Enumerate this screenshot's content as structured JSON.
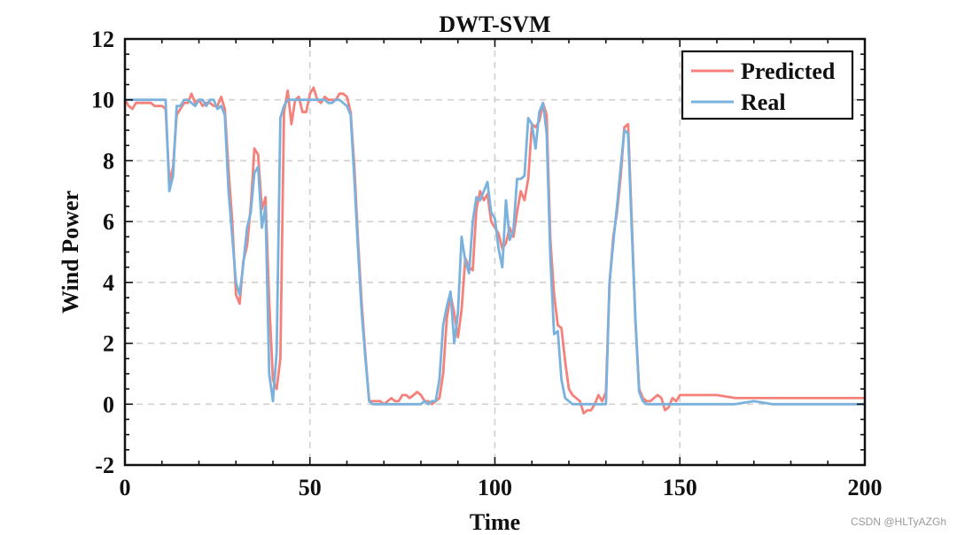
{
  "watermark": "CSDN @HLTyAZGh",
  "chart_data": {
    "type": "line",
    "title": "DWT-SVM",
    "xlabel": "Time",
    "ylabel": "Wind Power",
    "xlim": [
      0,
      200
    ],
    "ylim": [
      -2,
      12
    ],
    "xticks": [
      0,
      50,
      100,
      150,
      200
    ],
    "yticks": [
      -2,
      0,
      2,
      4,
      6,
      8,
      10,
      12
    ],
    "xtick_labels": [
      "0",
      "50",
      "100",
      "150",
      "200"
    ],
    "ytick_labels": [
      "-2",
      "0",
      "2",
      "4",
      "6",
      "8",
      "10",
      "12"
    ],
    "grid": true,
    "legend_position": "top-right",
    "series": [
      {
        "name": "Predicted",
        "color": "#f4827b",
        "x": [
          0,
          1,
          2,
          3,
          4,
          5,
          6,
          7,
          8,
          9,
          10,
          11,
          12,
          13,
          14,
          15,
          16,
          17,
          18,
          19,
          20,
          21,
          22,
          23,
          24,
          25,
          26,
          27,
          28,
          29,
          30,
          31,
          32,
          33,
          34,
          35,
          36,
          37,
          38,
          39,
          40,
          41,
          42,
          43,
          44,
          45,
          46,
          47,
          48,
          49,
          50,
          51,
          52,
          53,
          54,
          55,
          56,
          57,
          58,
          59,
          60,
          61,
          62,
          63,
          64,
          65,
          66,
          67,
          68,
          69,
          70,
          71,
          72,
          73,
          74,
          75,
          76,
          77,
          78,
          79,
          80,
          81,
          82,
          83,
          84,
          85,
          86,
          87,
          88,
          89,
          90,
          91,
          92,
          93,
          94,
          95,
          96,
          97,
          98,
          99,
          100,
          101,
          102,
          103,
          104,
          105,
          106,
          107,
          108,
          109,
          110,
          111,
          112,
          113,
          114,
          115,
          116,
          117,
          118,
          119,
          120,
          121,
          122,
          123,
          124,
          125,
          126,
          127,
          128,
          129,
          130,
          131,
          132,
          133,
          134,
          135,
          136,
          137,
          138,
          139,
          140,
          141,
          142,
          143,
          144,
          145,
          146,
          147,
          148,
          149,
          150,
          155,
          160,
          165,
          170,
          175,
          180,
          185,
          190,
          195,
          200
        ],
        "values": [
          10,
          9.8,
          9.7,
          9.9,
          9.9,
          9.9,
          9.9,
          9.9,
          9.8,
          9.8,
          9.8,
          9.7,
          7.3,
          7.8,
          9.5,
          9.7,
          9.9,
          9.9,
          10.2,
          9.9,
          10,
          9.8,
          9.9,
          9.9,
          9.8,
          9.8,
          10.1,
          9.7,
          7.7,
          6,
          3.6,
          3.3,
          4.7,
          5.2,
          6.5,
          8.4,
          8.2,
          6.4,
          6.8,
          3.4,
          0.8,
          0.5,
          1.5,
          9.6,
          10.3,
          9.2,
          10,
          10.1,
          9.6,
          9.6,
          10.2,
          10.4,
          10,
          9.9,
          10.1,
          10,
          10,
          10,
          10.2,
          10.2,
          10.1,
          9.6,
          7.8,
          5.4,
          3.3,
          1.6,
          0.1,
          0.1,
          0.1,
          0.1,
          0,
          0.1,
          0.2,
          0.1,
          0.1,
          0.3,
          0.3,
          0.2,
          0.3,
          0.4,
          0.3,
          0.1,
          0.1,
          0,
          0.1,
          0.2,
          1,
          2.8,
          3.6,
          3,
          2.2,
          3.1,
          4.8,
          4.5,
          4.4,
          6.4,
          7,
          6.7,
          6.9,
          6,
          5.8,
          5.6,
          5.1,
          5.3,
          5.8,
          5.5,
          6.3,
          7,
          6.7,
          7.4,
          9.2,
          9.1,
          9.3,
          9.9,
          9.5,
          5.4,
          3.6,
          2.6,
          2.5,
          1.4,
          0.5,
          0.3,
          0.2,
          0.1,
          -0.3,
          -0.2,
          -0.2,
          0,
          0.3,
          0.1,
          0.4,
          4,
          5.5,
          6.3,
          7.5,
          9.1,
          9.2,
          6,
          2.7,
          0.5,
          0.2,
          0.1,
          0.1,
          0.2,
          0.3,
          0.2,
          -0.2,
          -0.1,
          0.2,
          0.1,
          0.3,
          0.3,
          0.3,
          0.2,
          0.2,
          0.2,
          0.2,
          0.2,
          0.2,
          0.2,
          0.2
        ]
      },
      {
        "name": "Real",
        "color": "#7ab2dd",
        "x": [
          0,
          1,
          2,
          3,
          4,
          5,
          6,
          7,
          8,
          9,
          10,
          11,
          12,
          13,
          14,
          15,
          16,
          17,
          18,
          19,
          20,
          21,
          22,
          23,
          24,
          25,
          26,
          27,
          28,
          29,
          30,
          31,
          32,
          33,
          34,
          35,
          36,
          37,
          38,
          39,
          40,
          41,
          42,
          43,
          44,
          45,
          46,
          47,
          48,
          49,
          50,
          51,
          52,
          53,
          54,
          55,
          56,
          57,
          58,
          59,
          60,
          61,
          62,
          63,
          64,
          65,
          66,
          67,
          68,
          69,
          70,
          71,
          72,
          73,
          74,
          75,
          76,
          77,
          78,
          79,
          80,
          81,
          82,
          83,
          84,
          85,
          86,
          87,
          88,
          89,
          90,
          91,
          92,
          93,
          94,
          95,
          96,
          97,
          98,
          99,
          100,
          101,
          102,
          103,
          104,
          105,
          106,
          107,
          108,
          109,
          110,
          111,
          112,
          113,
          114,
          115,
          116,
          117,
          118,
          119,
          120,
          121,
          122,
          123,
          124,
          125,
          126,
          127,
          128,
          129,
          130,
          131,
          132,
          133,
          134,
          135,
          136,
          137,
          138,
          139,
          140,
          141,
          142,
          143,
          144,
          145,
          146,
          147,
          148,
          149,
          150,
          155,
          160,
          165,
          170,
          175,
          180,
          185,
          190,
          195,
          200
        ],
        "values": [
          10,
          10,
          10,
          10,
          10,
          10,
          10,
          10,
          10,
          10,
          10,
          10,
          7,
          7.5,
          9.8,
          9.8,
          10,
          10,
          9.9,
          9.8,
          10,
          10,
          9.8,
          10,
          10,
          9.7,
          9.8,
          9.5,
          7,
          5.5,
          4,
          3.6,
          4.6,
          5.8,
          6.3,
          7.6,
          7.8,
          5.8,
          6.5,
          1,
          0.1,
          1.7,
          9.4,
          9.8,
          10,
          10,
          10,
          10,
          10,
          10,
          10,
          10,
          10,
          10,
          10,
          9.9,
          9.9,
          10,
          10,
          9.9,
          9.8,
          9.5,
          7.4,
          5.1,
          3,
          1.5,
          0.1,
          0,
          0,
          0,
          0,
          0,
          0,
          0,
          0,
          0,
          0,
          0,
          0,
          0,
          0,
          0.1,
          0,
          0.1,
          0.1,
          0.8,
          2.6,
          3.2,
          3.7,
          2,
          3,
          5.5,
          4.7,
          4.3,
          6,
          6.8,
          6.7,
          7,
          7.3,
          6.3,
          6.1,
          5.1,
          4.5,
          6.7,
          5.4,
          5.7,
          7.4,
          7.4,
          7.5,
          9.4,
          9.2,
          8.4,
          9.6,
          9.9,
          8.9,
          4.8,
          2.3,
          2.4,
          0.8,
          0.2,
          0.1,
          0,
          0,
          0,
          0,
          0,
          0,
          0,
          0,
          0,
          0,
          4,
          5.3,
          6.5,
          7.8,
          9,
          8.9,
          5.7,
          2.8,
          0.4,
          0.1,
          0,
          0,
          0,
          0,
          0,
          0,
          0,
          0,
          0,
          0,
          0,
          0,
          0,
          0.1,
          0,
          0,
          0,
          0,
          0,
          0
        ]
      }
    ]
  }
}
